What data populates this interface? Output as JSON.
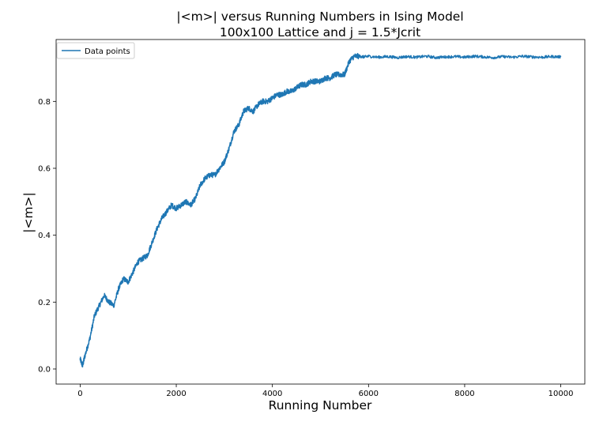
{
  "chart_data": {
    "type": "line",
    "title": "|<m>| versus Running Numbers in Ising Model",
    "subtitle": "100x100 Lattice and j = 1.5*Jcrit",
    "xlabel": "Running Number",
    "ylabel": "|<m>|",
    "xlim": [
      -500,
      10500
    ],
    "ylim": [
      -0.045,
      0.985
    ],
    "grid": false,
    "legend_position": "top-left",
    "x_ticks": [
      0,
      2000,
      4000,
      6000,
      8000,
      10000
    ],
    "x_tick_labels": [
      "0",
      "2000",
      "4000",
      "6000",
      "8000",
      "10000"
    ],
    "y_ticks": [
      0.0,
      0.2,
      0.4,
      0.6,
      0.8
    ],
    "y_tick_labels": [
      "0.0",
      "0.2",
      "0.4",
      "0.6",
      "0.8"
    ],
    "series": [
      {
        "name": "Data points",
        "color": "#1f77b4",
        "x": [
          0,
          50,
          100,
          200,
          300,
          400,
          500,
          600,
          700,
          800,
          900,
          1000,
          1100,
          1200,
          1300,
          1400,
          1500,
          1600,
          1700,
          1800,
          1900,
          2000,
          2100,
          2200,
          2300,
          2400,
          2500,
          2600,
          2700,
          2800,
          2900,
          3000,
          3100,
          3200,
          3300,
          3400,
          3500,
          3600,
          3700,
          3800,
          3900,
          4000,
          4100,
          4200,
          4300,
          4400,
          4500,
          4600,
          4700,
          4800,
          4900,
          5000,
          5100,
          5200,
          5300,
          5400,
          5500,
          5600,
          5700,
          5800,
          5900,
          6000,
          6200,
          6400,
          6600,
          6800,
          7000,
          7200,
          7400,
          7600,
          7800,
          8000,
          8200,
          8400,
          8600,
          8800,
          9000,
          9200,
          9400,
          9600,
          9800,
          10000
        ],
        "y": [
          0.03,
          0.01,
          0.04,
          0.09,
          0.16,
          0.19,
          0.22,
          0.2,
          0.19,
          0.24,
          0.27,
          0.26,
          0.29,
          0.32,
          0.33,
          0.34,
          0.38,
          0.42,
          0.45,
          0.47,
          0.49,
          0.48,
          0.49,
          0.5,
          0.49,
          0.51,
          0.55,
          0.57,
          0.58,
          0.58,
          0.6,
          0.62,
          0.66,
          0.71,
          0.73,
          0.77,
          0.78,
          0.77,
          0.79,
          0.8,
          0.8,
          0.81,
          0.82,
          0.82,
          0.83,
          0.83,
          0.84,
          0.85,
          0.85,
          0.86,
          0.86,
          0.86,
          0.87,
          0.87,
          0.88,
          0.88,
          0.88,
          0.92,
          0.935,
          0.935,
          0.933,
          0.935,
          0.932,
          0.934,
          0.931,
          0.934,
          0.932,
          0.935,
          0.931,
          0.933,
          0.934,
          0.932,
          0.935,
          0.933,
          0.931,
          0.934,
          0.932,
          0.935,
          0.933,
          0.932,
          0.934,
          0.933
        ]
      }
    ]
  }
}
